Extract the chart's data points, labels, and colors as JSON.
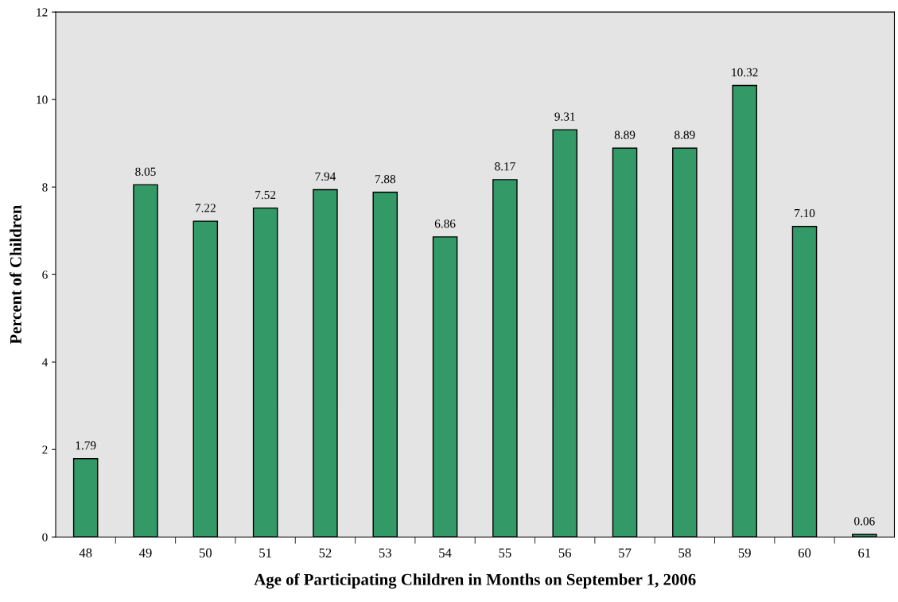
{
  "chart_data": {
    "type": "bar",
    "xlabel": "Age of Participating Children in Months on September 1, 2006",
    "ylabel": "Percent of Children",
    "categories": [
      "48",
      "49",
      "50",
      "51",
      "52",
      "53",
      "54",
      "55",
      "56",
      "57",
      "58",
      "59",
      "60",
      "61"
    ],
    "series": [
      {
        "color": "#339966",
        "values": [
          1.79,
          8.05,
          7.22,
          7.52,
          7.94,
          7.88,
          6.86,
          8.17,
          9.31,
          8.89,
          8.89,
          10.32,
          7.1,
          0.06
        ],
        "value_labels": [
          "1.79",
          "8.05",
          "7.22",
          "7.52",
          "7.94",
          "7.88",
          "6.86",
          "8.17",
          "9.31",
          "8.89",
          "8.89",
          "10.32",
          "7.10",
          "0.06"
        ]
      }
    ],
    "ylim": [
      0,
      12
    ],
    "yticks": [
      0,
      2,
      4,
      6,
      8,
      10,
      12
    ],
    "grid": false,
    "legend": false
  }
}
